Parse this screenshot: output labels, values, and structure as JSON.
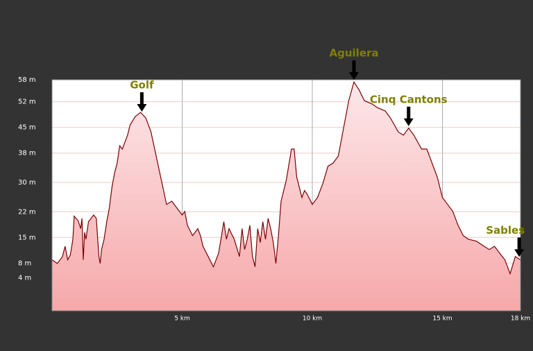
{
  "chart_data": {
    "type": "area",
    "x": [
      0,
      0.2,
      0.4,
      0.5,
      0.6,
      0.7,
      0.8,
      0.85,
      1.0,
      1.1,
      1.15,
      1.2,
      1.25,
      1.3,
      1.4,
      1.5,
      1.6,
      1.7,
      1.8,
      1.85,
      1.9,
      2.0,
      2.1,
      2.2,
      2.3,
      2.4,
      2.5,
      2.6,
      2.7,
      2.8,
      2.9,
      3.0,
      3.2,
      3.4,
      3.6,
      3.8,
      4.0,
      4.2,
      4.4,
      4.6,
      4.8,
      5.0,
      5.1,
      5.2,
      5.4,
      5.6,
      5.7,
      5.8,
      6.0,
      6.2,
      6.4,
      6.6,
      6.7,
      6.8,
      7.0,
      7.2,
      7.3,
      7.4,
      7.5,
      7.6,
      7.7,
      7.8,
      7.9,
      8.0,
      8.1,
      8.2,
      8.3,
      8.4,
      8.5,
      8.6,
      8.7,
      8.8,
      9.0,
      9.2,
      9.3,
      9.4,
      9.6,
      9.7,
      9.8,
      10.0,
      10.2,
      10.4,
      10.6,
      10.8,
      11.0,
      11.2,
      11.4,
      11.6,
      11.8,
      12.0,
      12.3,
      12.5,
      12.8,
      13.0,
      13.3,
      13.5,
      13.7,
      13.9,
      14.2,
      14.4,
      14.6,
      14.8,
      15.0,
      15.2,
      15.4,
      15.6,
      15.8,
      16.0,
      16.3,
      16.6,
      16.8,
      17.0,
      17.2,
      17.4,
      17.5,
      17.6,
      17.8,
      18.0
    ],
    "values": [
      8.9,
      7.9,
      9.8,
      12.6,
      8.9,
      10.2,
      14.5,
      20.8,
      19.6,
      17.4,
      20.2,
      8.9,
      16.4,
      14.5,
      19.3,
      20.2,
      21.1,
      20.2,
      9.8,
      7.9,
      11.7,
      14.5,
      19.3,
      23.0,
      28.7,
      32.5,
      35.3,
      40.0,
      39.1,
      41.0,
      42.9,
      45.7,
      48.0,
      49.1,
      47.6,
      43.8,
      37.2,
      30.6,
      24.0,
      24.9,
      23.0,
      21.1,
      22.1,
      18.3,
      15.5,
      17.4,
      15.5,
      12.6,
      9.8,
      7.0,
      10.7,
      19.3,
      14.5,
      17.4,
      14.5,
      9.8,
      17.4,
      11.7,
      14.5,
      18.3,
      9.8,
      7.0,
      17.4,
      13.6,
      19.3,
      14.5,
      20.2,
      17.4,
      13.6,
      7.9,
      15.5,
      24.9,
      30.6,
      39.1,
      39.1,
      31.5,
      25.9,
      27.8,
      26.8,
      24.0,
      25.9,
      29.6,
      34.4,
      35.3,
      37.2,
      44.8,
      52.3,
      57.4,
      55.2,
      52.3,
      51.4,
      50.4,
      49.5,
      47.6,
      43.8,
      42.9,
      44.8,
      42.9,
      39.1,
      39.1,
      35.3,
      31.5,
      25.9,
      24.0,
      22.1,
      18.3,
      15.5,
      14.5,
      14.0,
      12.6,
      11.7,
      12.6,
      10.7,
      8.9,
      7.0,
      5.1,
      9.8,
      8.9
    ],
    "xlim": [
      0,
      18
    ],
    "ylim": [
      -5,
      58
    ],
    "xticks": [
      {
        "value": 5,
        "label": "5 km"
      },
      {
        "value": 10,
        "label": "10 km"
      },
      {
        "value": 15,
        "label": "15 km"
      },
      {
        "value": 18,
        "label": "18 km"
      }
    ],
    "yticks": [
      {
        "value": 58,
        "label": "58 m"
      },
      {
        "value": 52,
        "label": "52 m"
      },
      {
        "value": 45,
        "label": "45 m"
      },
      {
        "value": 38,
        "label": "38 m"
      },
      {
        "value": 30,
        "label": "30 m"
      },
      {
        "value": 22,
        "label": "22 m"
      },
      {
        "value": 15,
        "label": "15 m"
      },
      {
        "value": 8,
        "label": "8 m"
      },
      {
        "value": 4,
        "label": "4 m"
      }
    ],
    "annotations": [
      {
        "text": "Golf",
        "x": 3.45
      },
      {
        "text": "Aguilera",
        "x": 11.6
      },
      {
        "text": "Cinq Cantons",
        "x": 13.7
      },
      {
        "text": "Sables",
        "x": 17.95
      }
    ],
    "color": "#7a0000",
    "grid": true
  }
}
